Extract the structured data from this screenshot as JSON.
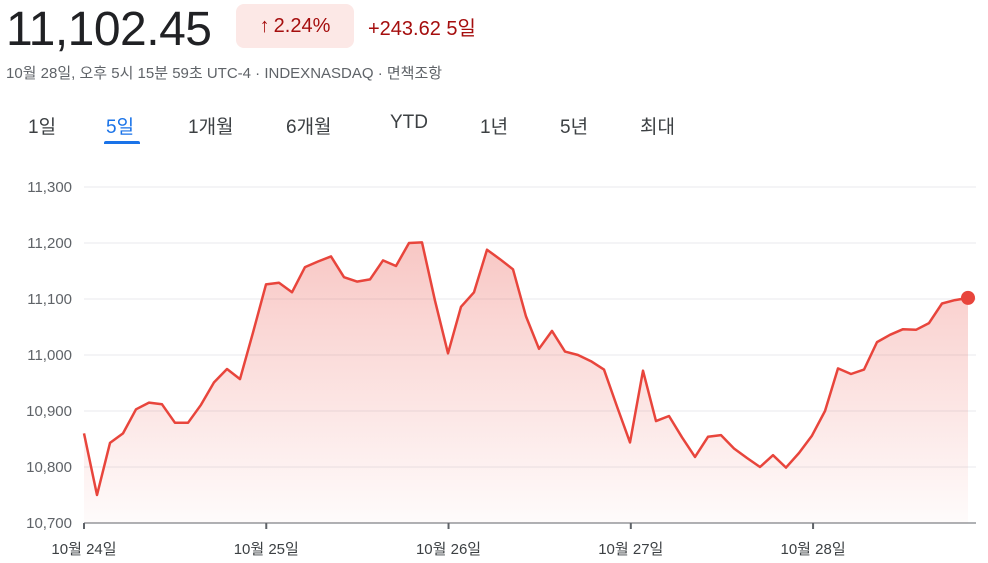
{
  "quote": {
    "price": "11,102.45",
    "percent_change": "2.24%",
    "abs_change": "+243.62 5일",
    "meta": "10월 28일, 오후 5시 15분 59초 UTC-4 · INDEXNASDAQ · 면책조항",
    "arrow_icon": "arrow-up-icon",
    "up_color": "#a50e0e",
    "up_badge_bg": "#fce8e6"
  },
  "tabs": [
    {
      "label": "1일",
      "active": false
    },
    {
      "label": "5일",
      "active": true
    },
    {
      "label": "1개월",
      "active": false
    },
    {
      "label": "6개월",
      "active": false
    },
    {
      "label": "YTD",
      "active": false
    },
    {
      "label": "1년",
      "active": false
    },
    {
      "label": "5년",
      "active": false
    },
    {
      "label": "최대",
      "active": false
    }
  ],
  "chart_data": {
    "type": "area",
    "title": "",
    "xlabel": "",
    "ylabel": "",
    "ylim": [
      10700,
      11300
    ],
    "yticks": [
      "11,300",
      "11,200",
      "11,100",
      "11,000",
      "10,900",
      "10,800",
      "10,700"
    ],
    "ytick_values": [
      11300,
      11200,
      11100,
      11000,
      10900,
      10800,
      10700
    ],
    "xticks": [
      "10월 24일",
      "10월 25일",
      "10월 26일",
      "10월 27일",
      "10월 28일"
    ],
    "grid": true,
    "line_color": "#e8453c",
    "series": [
      {
        "values": [
          10860,
          10750,
          10843,
          10860,
          10903,
          10915,
          10912,
          10879,
          10879,
          10911,
          10951,
          10975,
          10957,
          11040,
          11126,
          11129,
          11112,
          11157,
          11167,
          11176,
          11139,
          11131,
          11135,
          11169,
          11159,
          11200,
          11201,
          11097,
          11003,
          11086,
          11112,
          11188,
          11171,
          11153,
          11069,
          11011,
          11043,
          11006,
          11000,
          10989,
          10974,
          10908,
          10844,
          10972,
          10882,
          10891,
          10853,
          10818,
          10854,
          10857,
          10833,
          10816,
          10800,
          10821,
          10799,
          10825,
          10856,
          10900,
          10976,
          10966,
          10974,
          11023,
          11036,
          11046,
          11045,
          11057,
          11092,
          11098,
          11102
        ]
      }
    ]
  }
}
